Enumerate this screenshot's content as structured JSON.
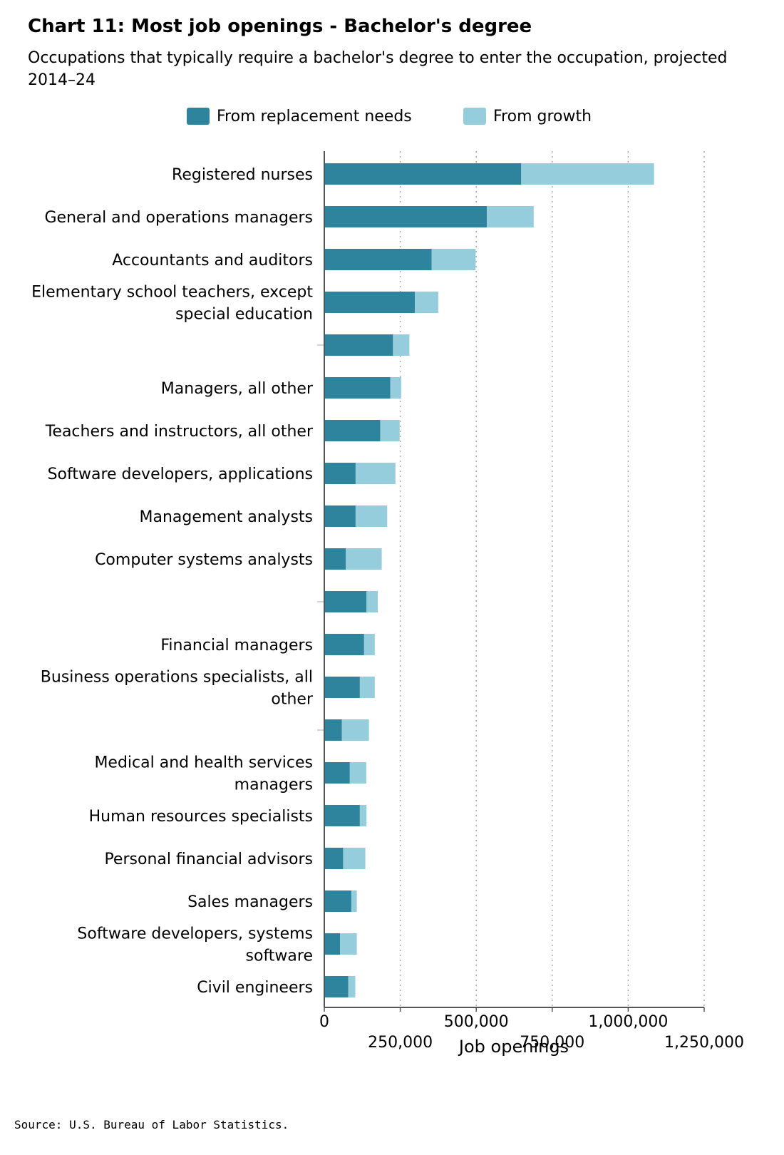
{
  "title": "Chart 11: Most job openings - Bachelor's degree",
  "subtitle": "Occupations that typically require a bachelor's degree to enter the occupation, projected 2014–24",
  "source": "Source: U.S. Bureau of Labor Statistics.",
  "colors": {
    "replacement": "#2e849c",
    "growth": "#95cddd",
    "axis": "#555555",
    "grid": "#aaaaaa"
  },
  "chart_data": {
    "type": "bar",
    "orientation": "horizontal",
    "stacked": true,
    "xlabel": "Job openings",
    "xlim": [
      0,
      1250000
    ],
    "xticks": [
      {
        "value": 0,
        "label": "0"
      },
      {
        "value": 250000,
        "label": "250,000"
      },
      {
        "value": 500000,
        "label": "500,000"
      },
      {
        "value": 750000,
        "label": "750,000"
      },
      {
        "value": 1000000,
        "label": "1,000,000"
      },
      {
        "value": 1250000,
        "label": "1,250,000"
      }
    ],
    "grid": true,
    "legend_position": "top",
    "categories": [
      [
        "Registered nurses"
      ],
      [
        "General and operations managers"
      ],
      [
        "Accountants and auditors"
      ],
      [
        "Elementary school teachers, except",
        "special education"
      ],
      [
        ""
      ],
      [
        "Managers, all other"
      ],
      [
        "Teachers and instructors, all other"
      ],
      [
        "Software developers, applications"
      ],
      [
        "Management analysts"
      ],
      [
        "Computer systems analysts"
      ],
      [
        ""
      ],
      [
        "Financial managers"
      ],
      [
        "Business operations specialists, all",
        "other"
      ],
      [
        ""
      ],
      [
        "Medical and health services",
        "managers"
      ],
      [
        "Human resources specialists"
      ],
      [
        "Personal financial advisors"
      ],
      [
        "Sales managers"
      ],
      [
        "Software developers, systems",
        "software"
      ],
      [
        "Civil engineers"
      ]
    ],
    "series": [
      {
        "name": "From replacement needs",
        "values": [
          648000,
          535000,
          353000,
          298000,
          226000,
          217000,
          184000,
          103000,
          103000,
          71000,
          139000,
          131000,
          117000,
          58000,
          84000,
          117000,
          62000,
          89000,
          52000,
          79000
        ]
      },
      {
        "name": "From growth",
        "values": [
          437000,
          154000,
          145000,
          77000,
          54000,
          36000,
          64000,
          131000,
          104000,
          118000,
          37000,
          35000,
          49000,
          89000,
          54000,
          22000,
          73000,
          18000,
          55000,
          23000
        ]
      }
    ]
  }
}
